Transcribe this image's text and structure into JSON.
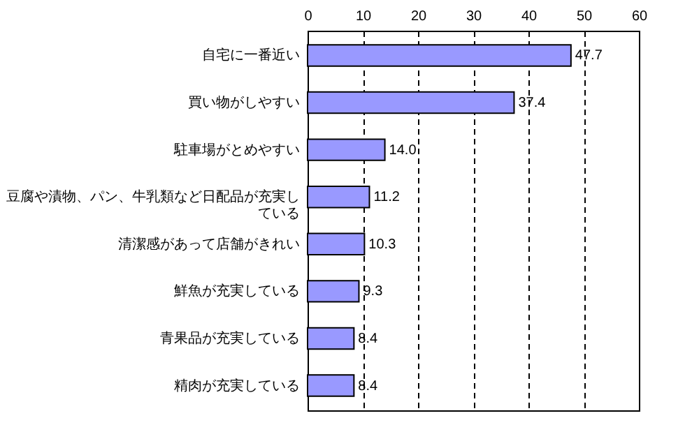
{
  "chart_data": {
    "type": "bar",
    "orientation": "horizontal",
    "categories": [
      "自宅に一番近い",
      "買い物がしやすい",
      "駐車場がとめやすい",
      "豆腐や漬物、パン、牛乳類など日配品が充実している",
      "清潔感があって店舗がきれい",
      "鮮魚が充実している",
      "青果品が充実している",
      "精肉が充実している"
    ],
    "values": [
      47.7,
      37.4,
      14.0,
      11.2,
      10.3,
      9.3,
      8.4,
      8.4
    ],
    "value_labels": [
      "47.7",
      "37.4",
      "14.0",
      "11.2",
      "10.3",
      "9.3",
      "8.4",
      "8.4"
    ],
    "color": "#9999ff",
    "xlim": [
      0,
      60
    ],
    "xticks": [
      0,
      10,
      20,
      30,
      40,
      50,
      60
    ],
    "grid": "x"
  }
}
